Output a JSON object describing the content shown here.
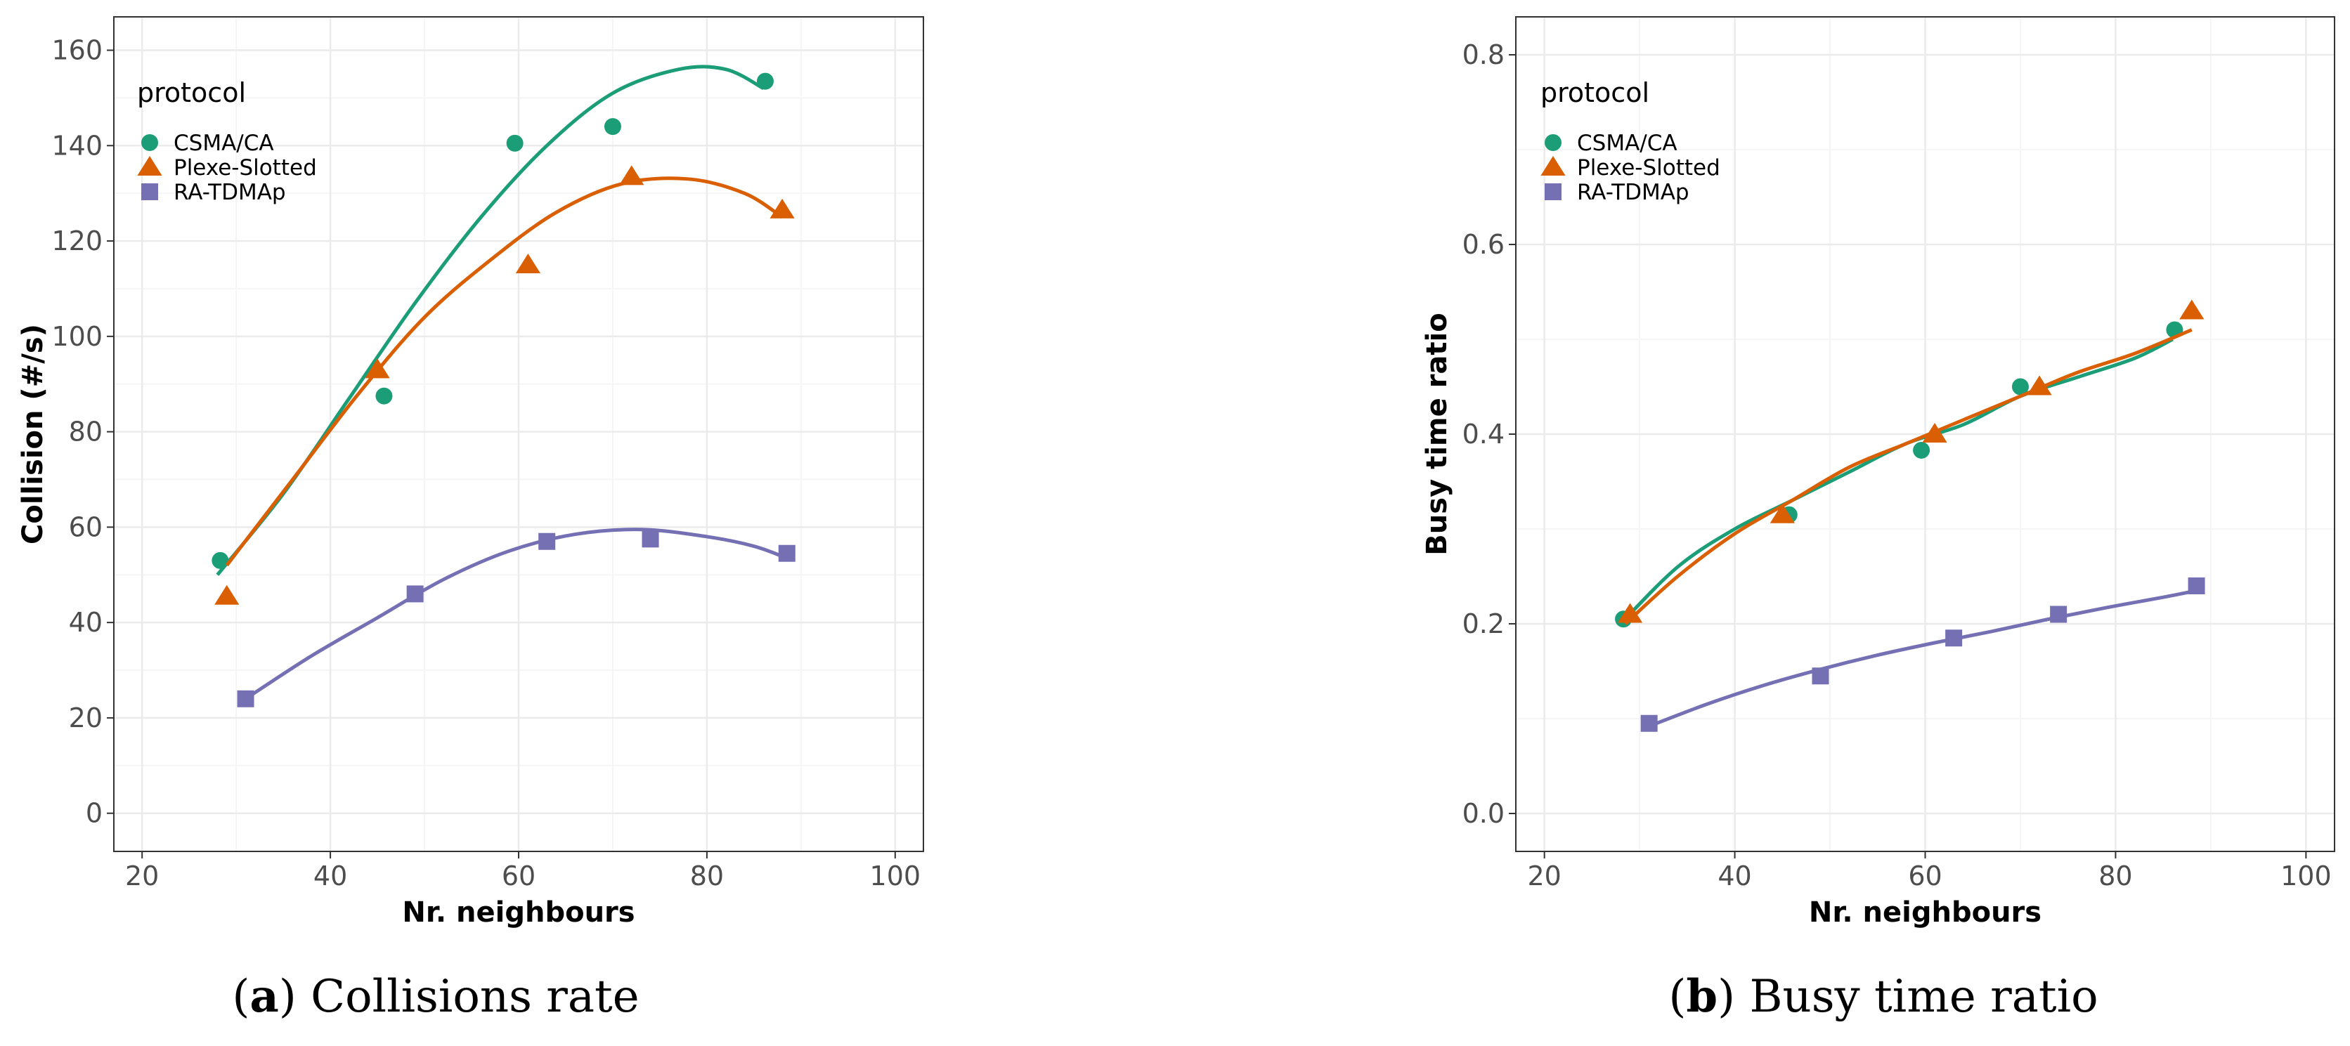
{
  "colors": {
    "csma": "#1b9e77",
    "plexe": "#d95f02",
    "ratdma": "#7570b3",
    "grid_major": "#ebebeb",
    "grid_minor": "#f5f5f5",
    "panel_border": "#333333"
  },
  "chart_data": [
    {
      "type": "scatter",
      "caption_letter": "a",
      "caption_text": "Collisions rate",
      "xlabel": "Nr. neighbours",
      "ylabel": "Collision (#/s)",
      "xlim": [
        17,
        103
      ],
      "ylim": [
        -8,
        167
      ],
      "x_ticks": [
        20,
        40,
        60,
        80,
        100
      ],
      "x_tick_labels": [
        "20",
        "40",
        "60",
        "80",
        "100"
      ],
      "y_ticks": [
        0,
        20,
        40,
        60,
        80,
        100,
        120,
        140,
        160
      ],
      "y_tick_labels": [
        "0",
        "20",
        "40",
        "60",
        "80",
        "100",
        "120",
        "140",
        "160"
      ],
      "legend": {
        "title": "protocol",
        "position": "top-left"
      },
      "series": [
        {
          "name": "CSMA/CA",
          "marker": "circle",
          "color_key": "csma",
          "x": [
            28.3,
            45.7,
            59.6,
            70.0,
            86.2
          ],
          "y": [
            53,
            87.5,
            140.5,
            144,
            153.5
          ],
          "fit": {
            "x": [
              28,
              35,
              42,
              49,
              56,
              63,
              70,
              77,
              82,
              86
            ],
            "y": [
              50,
              67,
              87,
              107,
              125,
              140,
              151,
              156,
              156,
              152
            ]
          }
        },
        {
          "name": "Plexe-Slotted",
          "marker": "triangle",
          "color_key": "plexe",
          "x": [
            29.0,
            45.0,
            61.0,
            72.0,
            88.0
          ],
          "y": [
            45.5,
            93,
            115,
            133.5,
            126.5
          ],
          "fit": {
            "x": [
              29,
              36,
              43,
              50,
              57,
              64,
              71,
              78,
              84,
              88
            ],
            "y": [
              52,
              70,
              88,
              104,
              116,
              126,
              132,
              133,
              130,
              125
            ]
          }
        },
        {
          "name": "RA-TDMAp",
          "marker": "square",
          "color_key": "ratdma",
          "x": [
            31.0,
            49.0,
            63.0,
            74.0,
            88.5
          ],
          "y": [
            24,
            46,
            57,
            57.5,
            54.5
          ],
          "fit": {
            "x": [
              31,
              38,
              45,
              52,
              59,
              66,
              73,
              80,
              85,
              88.5
            ],
            "y": [
              24,
              33,
              41,
              49,
              55,
              58.5,
              59.5,
              58,
              56,
              53.5
            ]
          }
        }
      ]
    },
    {
      "type": "scatter",
      "caption_letter": "b",
      "caption_text": "Busy time ratio",
      "xlabel": "Nr. neighbours",
      "ylabel": "Busy time ratio",
      "xlim": [
        17,
        103
      ],
      "ylim": [
        -0.04,
        0.84
      ],
      "x_ticks": [
        20,
        40,
        60,
        80,
        100
      ],
      "x_tick_labels": [
        "20",
        "40",
        "60",
        "80",
        "100"
      ],
      "y_ticks": [
        0,
        0.2,
        0.4,
        0.6,
        0.8
      ],
      "y_tick_labels": [
        "0.0",
        "0.2",
        "0.4",
        "0.6",
        "0.8"
      ],
      "legend": {
        "title": "protocol",
        "position": "top-left"
      },
      "series": [
        {
          "name": "CSMA/CA",
          "marker": "circle",
          "color_key": "csma",
          "x": [
            28.3,
            45.7,
            59.6,
            70.0,
            86.2
          ],
          "y": [
            0.205,
            0.315,
            0.383,
            0.45,
            0.51
          ],
          "fit": {
            "x": [
              28,
              34,
              40,
              46,
              52,
              58,
              64,
              70,
              76,
              82,
              86
            ],
            "y": [
              0.2,
              0.26,
              0.3,
              0.33,
              0.36,
              0.39,
              0.41,
              0.44,
              0.46,
              0.48,
              0.5
            ]
          }
        },
        {
          "name": "Plexe-Slotted",
          "marker": "triangle",
          "color_key": "plexe",
          "x": [
            29.0,
            45.0,
            61.0,
            72.0,
            88.0
          ],
          "y": [
            0.21,
            0.315,
            0.4,
            0.45,
            0.53
          ],
          "fit": {
            "x": [
              28.5,
              34,
              40,
              46,
              52,
              58,
              64,
              70,
              76,
              82,
              88
            ],
            "y": [
              0.2,
              0.25,
              0.295,
              0.33,
              0.365,
              0.39,
              0.415,
              0.44,
              0.465,
              0.485,
              0.51
            ]
          }
        },
        {
          "name": "RA-TDMAp",
          "marker": "square",
          "color_key": "ratdma",
          "x": [
            31.0,
            49.0,
            63.0,
            74.0,
            88.5
          ],
          "y": [
            0.095,
            0.145,
            0.185,
            0.21,
            0.24
          ],
          "fit": {
            "x": [
              31,
              37,
              43,
              49,
              55,
              61,
              67,
              73,
              79,
              85,
              88.5
            ],
            "y": [
              0.092,
              0.115,
              0.135,
              0.152,
              0.167,
              0.18,
              0.192,
              0.205,
              0.217,
              0.228,
              0.235
            ]
          }
        }
      ]
    }
  ]
}
